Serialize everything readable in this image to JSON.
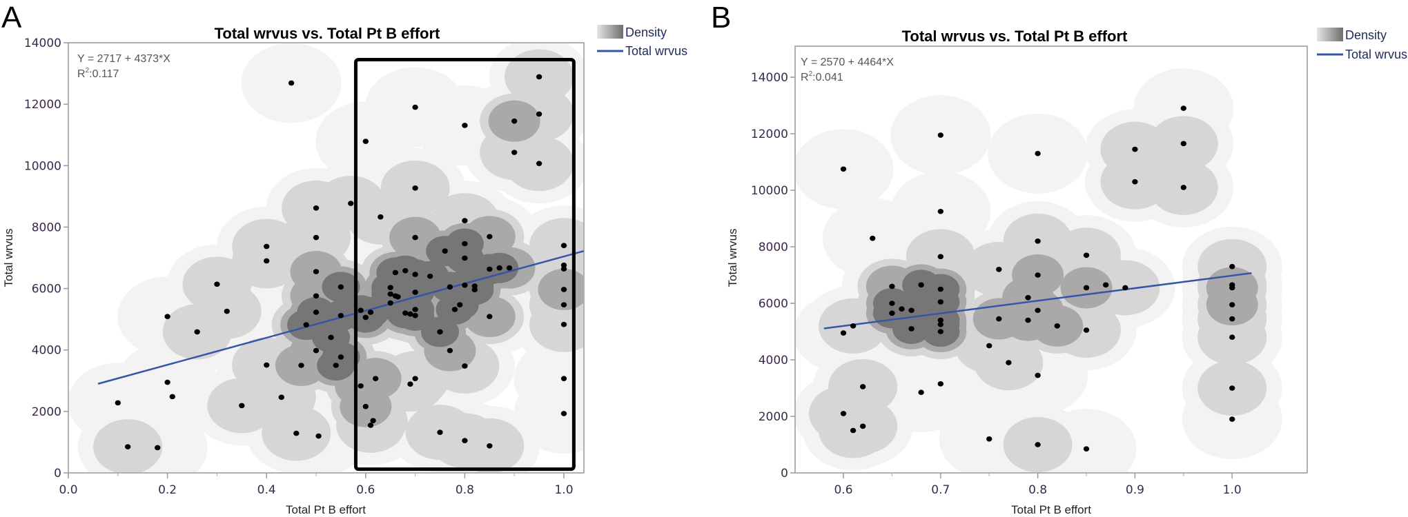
{
  "figure": {
    "colors": {
      "density_levels": [
        "#f3f3f3",
        "#d6d6d6",
        "#a9a9a9",
        "#767676"
      ],
      "fit_line": "#3555a8",
      "points": "#000000",
      "highlight_box": "#000000"
    }
  },
  "chart_data": [
    {
      "panel_label": "A",
      "type": "scatter",
      "title": "Total wrvus vs. Total Pt B effort",
      "xlabel": "Total Pt B effort",
      "ylabel": "Total wrvus",
      "xlim": [
        0.0,
        1.04
      ],
      "ylim": [
        0,
        14000
      ],
      "xticks": [
        0.0,
        0.2,
        0.4,
        0.6,
        0.8,
        1.0
      ],
      "xtick_labels": [
        "0.0",
        "0.2",
        "0.4",
        "0.6",
        "0.8",
        "1.0"
      ],
      "yticks": [
        0,
        2000,
        4000,
        6000,
        8000,
        10000,
        12000,
        14000
      ],
      "ytick_labels": [
        "0",
        "2000",
        "4000",
        "6000",
        "8000",
        "10000",
        "12000",
        "14000"
      ],
      "grid": false,
      "legend": {
        "placement": "top-right-outside",
        "entries": [
          "Density",
          "Total wrvus"
        ]
      },
      "annotation": {
        "equation": "Y = 2717 + 4373*X",
        "r2_label": "R",
        "r2_sup": "2",
        "r2_value": ":0.117"
      },
      "fit": {
        "intercept": 2717,
        "slope": 4373,
        "x_range": [
          0.06,
          1.04
        ]
      },
      "highlight_box": {
        "x_range": [
          0.58,
          1.02
        ],
        "y_range": [
          120,
          13450
        ]
      },
      "points": [
        [
          0.1,
          2280
        ],
        [
          0.12,
          850
        ],
        [
          0.18,
          820
        ],
        [
          0.2,
          5090
        ],
        [
          0.2,
          2950
        ],
        [
          0.21,
          2480
        ],
        [
          0.26,
          4590
        ],
        [
          0.3,
          6140
        ],
        [
          0.32,
          5260
        ],
        [
          0.35,
          2190
        ],
        [
          0.4,
          7370
        ],
        [
          0.4,
          6900
        ],
        [
          0.4,
          3510
        ],
        [
          0.43,
          2460
        ],
        [
          0.45,
          12690
        ],
        [
          0.46,
          1290
        ],
        [
          0.47,
          3500
        ],
        [
          0.48,
          4820
        ],
        [
          0.5,
          8620
        ],
        [
          0.5,
          7660
        ],
        [
          0.5,
          6550
        ],
        [
          0.5,
          5760
        ],
        [
          0.5,
          5230
        ],
        [
          0.5,
          3980
        ],
        [
          0.505,
          1200
        ],
        [
          0.53,
          4410
        ],
        [
          0.55,
          6050
        ],
        [
          0.54,
          3500
        ],
        [
          0.55,
          3770
        ],
        [
          0.55,
          5120
        ],
        [
          0.57,
          8770
        ],
        [
          0.59,
          2830
        ],
        [
          0.6,
          10790
        ],
        [
          0.6,
          5060
        ],
        [
          0.61,
          5230
        ],
        [
          0.59,
          5290
        ],
        [
          0.6,
          2160
        ],
        [
          0.61,
          1550
        ],
        [
          0.615,
          1700
        ],
        [
          0.62,
          3070
        ],
        [
          0.63,
          8330
        ],
        [
          0.65,
          5820
        ],
        [
          0.65,
          5530
        ],
        [
          0.65,
          6030
        ],
        [
          0.66,
          5760
        ],
        [
          0.665,
          5730
        ],
        [
          0.66,
          6520
        ],
        [
          0.68,
          5200
        ],
        [
          0.68,
          6580
        ],
        [
          0.69,
          5170
        ],
        [
          0.7,
          11900
        ],
        [
          0.7,
          9270
        ],
        [
          0.7,
          7660
        ],
        [
          0.7,
          6460
        ],
        [
          0.7,
          5880
        ],
        [
          0.7,
          5320
        ],
        [
          0.7,
          5120
        ],
        [
          0.69,
          2890
        ],
        [
          0.7,
          3070
        ],
        [
          0.73,
          6400
        ],
        [
          0.75,
          4590
        ],
        [
          0.76,
          7220
        ],
        [
          0.77,
          6050
        ],
        [
          0.78,
          5320
        ],
        [
          0.77,
          3980
        ],
        [
          0.75,
          1320
        ],
        [
          0.8,
          11310
        ],
        [
          0.8,
          8210
        ],
        [
          0.8,
          7460
        ],
        [
          0.8,
          6990
        ],
        [
          0.8,
          6110
        ],
        [
          0.79,
          5470
        ],
        [
          0.8,
          3480
        ],
        [
          0.8,
          1050
        ],
        [
          0.82,
          6080
        ],
        [
          0.82,
          5960
        ],
        [
          0.85,
          7690
        ],
        [
          0.85,
          5090
        ],
        [
          0.85,
          6630
        ],
        [
          0.85,
          880
        ],
        [
          0.87,
          6670
        ],
        [
          0.89,
          6670
        ],
        [
          0.9,
          10430
        ],
        [
          0.9,
          11450
        ],
        [
          0.95,
          12890
        ],
        [
          0.95,
          11680
        ],
        [
          0.95,
          10070
        ],
        [
          1.0,
          7400
        ],
        [
          1.0,
          6760
        ],
        [
          1.0,
          6640
        ],
        [
          1.0,
          5970
        ],
        [
          1.0,
          5470
        ],
        [
          1.0,
          4830
        ],
        [
          1.0,
          3070
        ],
        [
          1.0,
          1930
        ]
      ]
    },
    {
      "panel_label": "B",
      "type": "scatter",
      "title": "Total wrvus vs. Total Pt B effort",
      "xlabel": "Total Pt B effort",
      "ylabel": "Total wrvus",
      "xlim": [
        0.55,
        1.04
      ],
      "ylim": [
        0,
        15000
      ],
      "xticks": [
        0.6,
        0.7,
        0.8,
        0.9,
        1.0
      ],
      "xtick_labels": [
        "0.6",
        "0.7",
        "0.8",
        "0.9",
        "1.0"
      ],
      "yticks": [
        0,
        2000,
        4000,
        6000,
        8000,
        10000,
        12000,
        14000
      ],
      "ytick_labels": [
        "0",
        "2000",
        "4000",
        "6000",
        "8000",
        "10000",
        "12000",
        "14000"
      ],
      "grid": false,
      "legend": {
        "placement": "top-right-outside",
        "entries": [
          "Density",
          "Total wrvus"
        ]
      },
      "annotation": {
        "equation": "Y = 2570 + 4464*X",
        "r2_label": "R",
        "r2_sup": "2",
        "r2_value": ":0.041"
      },
      "fit": {
        "intercept": 2570,
        "slope": 4464,
        "x_range": [
          0.58,
          1.02
        ]
      },
      "points": [
        [
          0.6,
          10750
        ],
        [
          0.7,
          11950
        ],
        [
          0.7,
          9250
        ],
        [
          0.63,
          8300
        ],
        [
          0.7,
          7650
        ],
        [
          0.76,
          7200
        ],
        [
          0.65,
          6600
        ],
        [
          0.68,
          6650
        ],
        [
          0.7,
          6500
        ],
        [
          0.65,
          6000
        ],
        [
          0.7,
          6050
        ],
        [
          0.66,
          5800
        ],
        [
          0.67,
          5750
        ],
        [
          0.65,
          5650
        ],
        [
          0.7,
          5400
        ],
        [
          0.7,
          5250
        ],
        [
          0.61,
          5200
        ],
        [
          0.67,
          5100
        ],
        [
          0.7,
          5000
        ],
        [
          0.6,
          4950
        ],
        [
          0.76,
          5450
        ],
        [
          0.75,
          4500
        ],
        [
          0.77,
          3900
        ],
        [
          0.62,
          3050
        ],
        [
          0.68,
          2850
        ],
        [
          0.7,
          3150
        ],
        [
          0.6,
          2100
        ],
        [
          0.62,
          1650
        ],
        [
          0.61,
          1500
        ],
        [
          0.75,
          1200
        ],
        [
          0.95,
          12900
        ],
        [
          0.8,
          11300
        ],
        [
          0.9,
          11450
        ],
        [
          0.95,
          11650
        ],
        [
          0.9,
          10300
        ],
        [
          0.95,
          10100
        ],
        [
          0.8,
          8200
        ],
        [
          0.85,
          7700
        ],
        [
          0.8,
          7000
        ],
        [
          0.85,
          6550
        ],
        [
          0.87,
          6650
        ],
        [
          0.89,
          6550
        ],
        [
          0.79,
          6200
        ],
        [
          0.8,
          5750
        ],
        [
          0.79,
          5400
        ],
        [
          0.82,
          5200
        ],
        [
          0.85,
          5050
        ],
        [
          0.8,
          3450
        ],
        [
          0.8,
          1000
        ],
        [
          0.85,
          850
        ],
        [
          1.0,
          7300
        ],
        [
          1.0,
          6650
        ],
        [
          1.0,
          6550
        ],
        [
          1.0,
          5950
        ],
        [
          1.0,
          5450
        ],
        [
          1.0,
          4800
        ],
        [
          1.0,
          3000
        ],
        [
          1.0,
          1900
        ]
      ]
    }
  ]
}
